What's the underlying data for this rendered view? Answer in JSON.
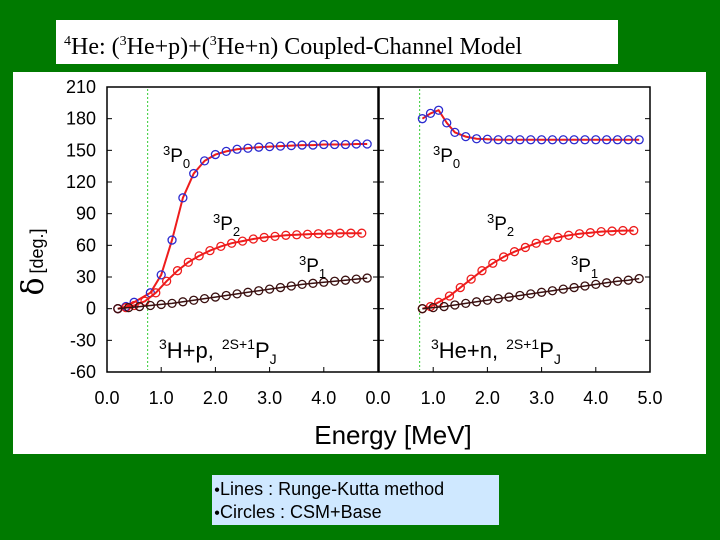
{
  "title": {
    "sup1": "4",
    "part1": "He: (",
    "sup2": "3",
    "part2": "He+p)+(",
    "sup3": "3",
    "part3": "He+n) Coupled-Channel Model"
  },
  "colors": {
    "background": "#007a00",
    "red": "#ee1c1c",
    "blue": "#2b2bd0",
    "dark": "#3a1010",
    "threshold": "#33cc33"
  },
  "legend": {
    "items": [
      {
        "label": "Lines : Runge-Kutta method"
      },
      {
        "label": "Circles : CSM+Base"
      }
    ]
  },
  "chart_data": {
    "type": "line",
    "ylabel_symbol": "δ",
    "ylabel_unit": "[deg.]",
    "xlabel": "Energy [MeV]",
    "ylim": [
      -60,
      210
    ],
    "yticks": [
      "210",
      "180",
      "150",
      "120",
      "90",
      "60",
      "30",
      "0",
      "-30",
      "-60"
    ],
    "panels": [
      {
        "name": "3H+p",
        "xlim": [
          0.0,
          5.0
        ],
        "xticks": [
          "0.0",
          "1.0",
          "2.0",
          "3.0",
          "4.0",
          "0.0"
        ],
        "threshold_x": 0.75,
        "channel_label": {
          "sup": "3",
          "main": "H+p,",
          "sup2": "2S+1",
          "main2": "P",
          "sub": "J"
        },
        "series": [
          {
            "name": "3P0",
            "label_sup": "3",
            "label_main": "P",
            "label_sub": "0",
            "color": "blue",
            "x": [
              0.2,
              0.35,
              0.5,
              0.8,
              1.0,
              1.2,
              1.4,
              1.6,
              1.8,
              2.0,
              2.2,
              2.4,
              2.6,
              2.8,
              3.0,
              3.2,
              3.4,
              3.6,
              3.8,
              4.0,
              4.2,
              4.4,
              4.6,
              4.8
            ],
            "y": [
              0,
              2,
              6,
              15,
              32,
              65,
              105,
              128,
              140,
              146,
              149,
              151,
              152,
              153,
              153.5,
              154,
              154.5,
              155,
              155,
              155.5,
              155.5,
              155.5,
              156,
              156
            ]
          },
          {
            "name": "3P2",
            "label_sup": "3",
            "label_main": "P",
            "label_sub": "2",
            "color": "red",
            "x": [
              0.2,
              0.35,
              0.5,
              0.7,
              0.9,
              1.1,
              1.3,
              1.5,
              1.7,
              1.9,
              2.1,
              2.3,
              2.5,
              2.7,
              2.9,
              3.1,
              3.3,
              3.5,
              3.7,
              3.9,
              4.1,
              4.3,
              4.5,
              4.7
            ],
            "y": [
              0,
              1,
              3,
              7,
              15,
              26,
              36,
              44,
              50,
              55,
              59,
              62,
              64,
              66,
              67.5,
              68.5,
              69.5,
              70,
              70.5,
              71,
              71,
              71.5,
              71.5,
              71.5
            ]
          },
          {
            "name": "3P1",
            "label_sup": "3",
            "label_main": "P",
            "label_sub": "1",
            "color": "dark",
            "x": [
              0.2,
              0.4,
              0.6,
              0.8,
              1.0,
              1.2,
              1.4,
              1.6,
              1.8,
              2.0,
              2.2,
              2.4,
              2.6,
              2.8,
              3.0,
              3.2,
              3.4,
              3.6,
              3.8,
              4.0,
              4.2,
              4.4,
              4.6,
              4.8
            ],
            "y": [
              0,
              1,
              2,
              3,
              4,
              5,
              6.5,
              8,
              9.5,
              11,
              12.5,
              14,
              15.5,
              17,
              18.5,
              20,
              21.5,
              23,
              24,
              25,
              26,
              27,
              28,
              29
            ]
          }
        ]
      },
      {
        "name": "3He+n",
        "xlim": [
          0.0,
          5.0
        ],
        "xticks": [
          "1.0",
          "2.0",
          "3.0",
          "4.0",
          "5.0"
        ],
        "threshold_x": 0.75,
        "channel_label": {
          "sup": "3",
          "main": "He+n,",
          "sup2": "2S+1",
          "main2": "P",
          "sub": "J"
        },
        "series": [
          {
            "name": "3P0",
            "label_sup": "3",
            "label_main": "P",
            "label_sub": "0",
            "color": "blue",
            "x": [
              0.8,
              0.95,
              1.1,
              1.25,
              1.4,
              1.6,
              1.8,
              2.0,
              2.2,
              2.4,
              2.6,
              2.8,
              3.0,
              3.2,
              3.4,
              3.6,
              3.8,
              4.0,
              4.2,
              4.4,
              4.6,
              4.8
            ],
            "y": [
              180,
              185,
              188,
              176,
              167,
              163,
              161,
              160.5,
              160,
              160,
              160,
              160,
              160,
              160,
              160,
              160,
              160,
              160,
              160,
              160,
              160,
              160
            ]
          },
          {
            "name": "3P2",
            "label_sup": "3",
            "label_main": "P",
            "label_sub": "2",
            "color": "red",
            "x": [
              0.8,
              0.95,
              1.1,
              1.3,
              1.5,
              1.7,
              1.9,
              2.1,
              2.3,
              2.5,
              2.7,
              2.9,
              3.1,
              3.3,
              3.5,
              3.7,
              3.9,
              4.1,
              4.3,
              4.5,
              4.7
            ],
            "y": [
              0,
              2,
              6,
              12,
              20,
              28,
              36,
              43,
              49,
              54,
              58,
              62,
              65,
              67.5,
              69.5,
              71,
              72,
              73,
              73.5,
              74,
              74
            ]
          },
          {
            "name": "3P1",
            "label_sup": "3",
            "label_main": "P",
            "label_sub": "1",
            "color": "dark",
            "x": [
              0.8,
              1.0,
              1.2,
              1.4,
              1.6,
              1.8,
              2.0,
              2.2,
              2.4,
              2.6,
              2.8,
              3.0,
              3.2,
              3.4,
              3.6,
              3.8,
              4.0,
              4.2,
              4.4,
              4.6,
              4.8
            ],
            "y": [
              0,
              1,
              2,
              3.5,
              5,
              6.5,
              8,
              9.5,
              11,
              12.5,
              14,
              15.5,
              17,
              18.5,
              20,
              21.5,
              23,
              24.5,
              26,
              27,
              28.5
            ]
          }
        ]
      }
    ]
  }
}
